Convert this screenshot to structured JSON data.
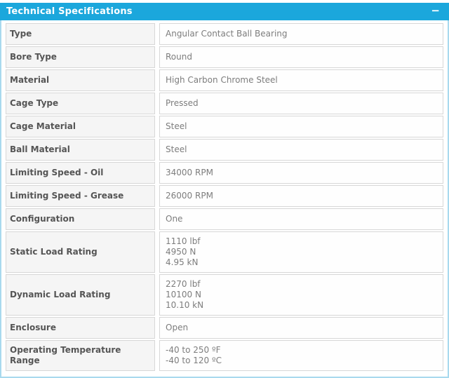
{
  "panel": {
    "title": "Technical Specifications",
    "collapse_icon": "−",
    "rows": [
      {
        "label": "Type",
        "value": "Angular Contact Ball Bearing"
      },
      {
        "label": "Bore Type",
        "value": "Round"
      },
      {
        "label": "Material",
        "value": "High Carbon Chrome Steel"
      },
      {
        "label": "Cage Type",
        "value": "Pressed"
      },
      {
        "label": "Cage Material",
        "value": "Steel"
      },
      {
        "label": "Ball Material",
        "value": "Steel"
      },
      {
        "label": "Limiting Speed - Oil",
        "value": "34000 RPM"
      },
      {
        "label": "Limiting Speed - Grease",
        "value": "26000 RPM"
      },
      {
        "label": "Configuration",
        "value": "One"
      },
      {
        "label": "Static Load Rating",
        "value": "1110 lbf\n4950 N\n4.95 kN"
      },
      {
        "label": "Dynamic Load Rating",
        "value": "2270 lbf\n10100 N\n10.10 kN"
      },
      {
        "label": "Enclosure",
        "value": "Open"
      },
      {
        "label": "Operating Temperature Range",
        "value": "-40 to 250 ºF\n-40 to 120 ºC"
      }
    ]
  },
  "colors": {
    "header_bg": "#1ba7dc",
    "header_text": "#ffffff",
    "panel_border": "#a9d9ee",
    "row_border": "#d7d7d7",
    "label_bg": "#f5f5f5",
    "label_text": "#555555",
    "value_bg": "#fefefe",
    "value_text": "#7d7d7d"
  }
}
